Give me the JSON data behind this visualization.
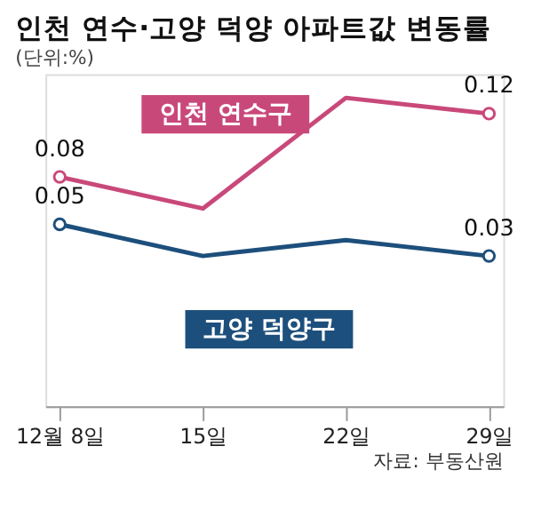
{
  "chart_data": {
    "type": "line",
    "title": "인천 연수·고양 덕양 아파트값 변동률",
    "subtitle": "(단위:%)",
    "categories": [
      "12월 8일",
      "15일",
      "22일",
      "29일"
    ],
    "series": [
      {
        "name": "인천 연수구",
        "color": "#c9487a",
        "values": [
          0.08,
          0.06,
          0.13,
          0.12
        ],
        "value_labels": [
          "0.08",
          null,
          null,
          "0.12"
        ]
      },
      {
        "name": "고양 덕양구",
        "color": "#1d4f7c",
        "values": [
          0.05,
          0.03,
          0.04,
          0.03
        ],
        "value_labels": [
          "0.05",
          null,
          null,
          "0.03"
        ]
      }
    ],
    "marker": "circle",
    "grid": false,
    "annotations": [
      "자료: 부동산원"
    ]
  }
}
